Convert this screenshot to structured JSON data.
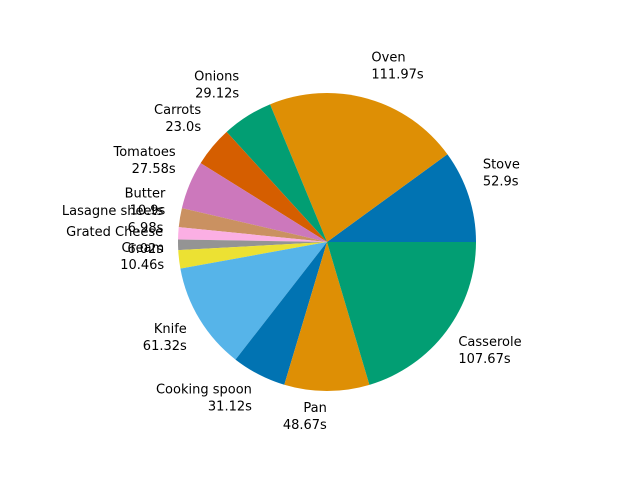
{
  "chart_data": {
    "type": "pie",
    "title": "",
    "start_angle_deg": 0,
    "direction": "counterclockwise",
    "slices": [
      {
        "label": "Stove",
        "value": 52.9,
        "value_text": "52.9s",
        "color": "#0173b2"
      },
      {
        "label": "Oven",
        "value": 111.97,
        "value_text": "111.97s",
        "color": "#de8f05"
      },
      {
        "label": "Onions",
        "value": 29.12,
        "value_text": "29.12s",
        "color": "#029e73"
      },
      {
        "label": "Carrots",
        "value": 23.0,
        "value_text": "23.0s",
        "color": "#d55e00"
      },
      {
        "label": "Tomatoes",
        "value": 27.58,
        "value_text": "27.58s",
        "color": "#cc78bc"
      },
      {
        "label": "Butter",
        "value": 10.9,
        "value_text": "10.9s",
        "color": "#ca9161"
      },
      {
        "label": "Lasagne sheets",
        "value": 6.98,
        "value_text": "6.98s",
        "color": "#fbafe4"
      },
      {
        "label": "Grated Cheese",
        "value": 6.02,
        "value_text": "6.02s",
        "color": "#949494"
      },
      {
        "label": "Cream",
        "value": 10.46,
        "value_text": "10.46s",
        "color": "#ece133"
      },
      {
        "label": "Knife",
        "value": 61.32,
        "value_text": "61.32s",
        "color": "#56b4e9"
      },
      {
        "label": "Cooking spoon",
        "value": 31.12,
        "value_text": "31.12s",
        "color": "#0173b2"
      },
      {
        "label": "Pan",
        "value": 48.67,
        "value_text": "48.67s",
        "color": "#de8f05"
      },
      {
        "label": "Casserole",
        "value": 107.67,
        "value_text": "107.67s",
        "color": "#029e73"
      }
    ]
  }
}
